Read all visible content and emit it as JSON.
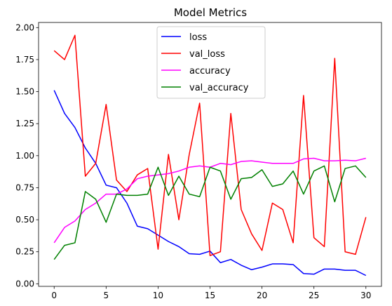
{
  "chart_data": {
    "type": "line",
    "title": "Model Metrics",
    "xlabel": "",
    "ylabel": "",
    "xlim": [
      -1.5,
      31.5
    ],
    "ylim": [
      -0.02,
      2.04
    ],
    "xticks": [
      0,
      5,
      10,
      15,
      20,
      25,
      30
    ],
    "yticks": [
      0.0,
      0.25,
      0.5,
      0.75,
      1.0,
      1.25,
      1.5,
      1.75,
      2.0
    ],
    "ytick_labels": [
      "0.00",
      "0.25",
      "0.50",
      "0.75",
      "1.00",
      "1.25",
      "1.50",
      "1.75",
      "2.00"
    ],
    "legend_position": "top-center",
    "grid": false,
    "x": [
      0,
      1,
      2,
      3,
      4,
      5,
      6,
      7,
      8,
      9,
      10,
      11,
      12,
      13,
      14,
      15,
      16,
      17,
      18,
      19,
      20,
      21,
      22,
      23,
      24,
      25,
      26,
      27,
      28,
      29,
      30
    ],
    "series": [
      {
        "name": "loss",
        "color": "#0000ff",
        "values": [
          1.51,
          1.33,
          1.22,
          1.06,
          0.94,
          0.77,
          0.75,
          0.63,
          0.45,
          0.43,
          0.38,
          0.33,
          0.29,
          0.235,
          0.23,
          0.255,
          0.165,
          0.19,
          0.145,
          0.11,
          0.13,
          0.155,
          0.155,
          0.15,
          0.08,
          0.075,
          0.115,
          0.115,
          0.105,
          0.105,
          0.065
        ]
      },
      {
        "name": "val_loss",
        "color": "#ff0000",
        "values": [
          1.82,
          1.75,
          1.94,
          0.84,
          0.94,
          1.4,
          0.81,
          0.72,
          0.85,
          0.9,
          0.27,
          1.01,
          0.5,
          1.01,
          1.41,
          0.22,
          0.25,
          1.33,
          0.58,
          0.39,
          0.26,
          0.63,
          0.58,
          0.32,
          1.47,
          0.36,
          0.29,
          1.76,
          0.25,
          0.23,
          0.52
        ]
      },
      {
        "name": "accuracy",
        "color": "#ff00ff",
        "values": [
          0.32,
          0.44,
          0.49,
          0.58,
          0.63,
          0.7,
          0.7,
          0.74,
          0.82,
          0.84,
          0.85,
          0.86,
          0.88,
          0.91,
          0.92,
          0.91,
          0.94,
          0.93,
          0.955,
          0.96,
          0.95,
          0.94,
          0.94,
          0.94,
          0.975,
          0.98,
          0.96,
          0.96,
          0.965,
          0.96,
          0.98
        ]
      },
      {
        "name": "val_accuracy",
        "color": "#008000",
        "values": [
          0.19,
          0.3,
          0.32,
          0.72,
          0.66,
          0.48,
          0.7,
          0.69,
          0.69,
          0.7,
          0.91,
          0.69,
          0.84,
          0.7,
          0.68,
          0.91,
          0.88,
          0.66,
          0.82,
          0.83,
          0.89,
          0.76,
          0.78,
          0.88,
          0.7,
          0.88,
          0.92,
          0.64,
          0.9,
          0.92,
          0.83
        ]
      }
    ]
  }
}
